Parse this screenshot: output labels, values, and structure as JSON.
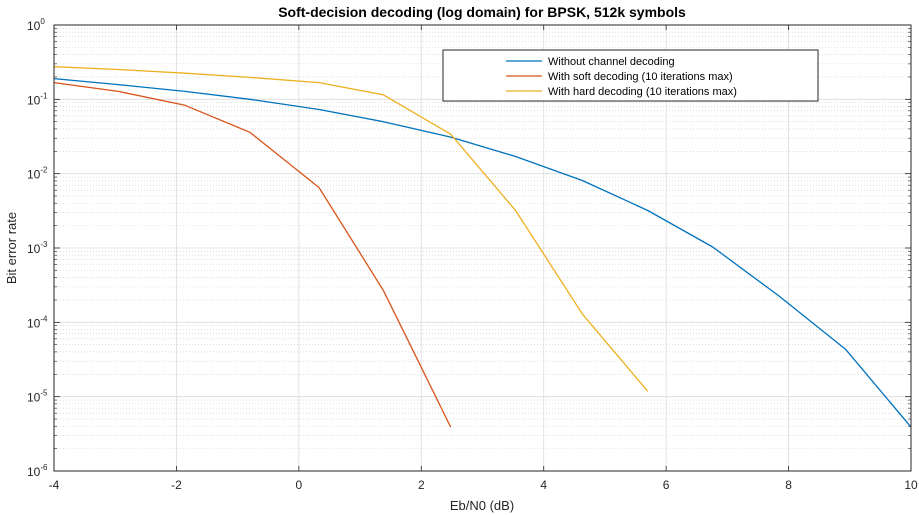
{
  "chart_data": {
    "type": "line",
    "title": "Soft-decision decoding (log domain) for BPSK, 512k symbols",
    "xlabel": "Eb/N0 (dB)",
    "ylabel": "Bit error rate",
    "xlim": [
      -4,
      10
    ],
    "ylim": [
      1e-06,
      1
    ],
    "yscale": "log",
    "grid": true,
    "minor_grid": true,
    "legend_position": "top-right",
    "x_ticks": [
      {
        "value": -4,
        "label": "-4"
      },
      {
        "value": -2,
        "label": "-2"
      },
      {
        "value": 0,
        "label": "0"
      },
      {
        "value": 2,
        "label": "2"
      },
      {
        "value": 4,
        "label": "4"
      },
      {
        "value": 6,
        "label": "6"
      },
      {
        "value": 8,
        "label": "8"
      },
      {
        "value": 10,
        "label": "10"
      }
    ],
    "y_ticks": [
      {
        "value": 1,
        "exponent": "0"
      },
      {
        "value": 0.1,
        "exponent": "-1"
      },
      {
        "value": 0.01,
        "exponent": "-2"
      },
      {
        "value": 0.001,
        "exponent": "-3"
      },
      {
        "value": 0.0001,
        "exponent": "-4"
      },
      {
        "value": 1e-05,
        "exponent": "-5"
      },
      {
        "value": 1e-06,
        "exponent": "-6"
      }
    ],
    "y_tick_base": "10",
    "series": [
      {
        "name": "Without channel decoding",
        "color": "#0072bd",
        "points": [
          [
            -4,
            0.19
          ],
          [
            -2.95,
            0.158
          ],
          [
            -1.86,
            0.128
          ],
          [
            -0.8,
            0.1
          ],
          [
            0.33,
            0.073
          ],
          [
            1.38,
            0.05
          ],
          [
            2.48,
            0.031
          ],
          [
            3.54,
            0.017
          ],
          [
            4.63,
            0.0081
          ],
          [
            5.7,
            0.0032
          ],
          [
            6.76,
            0.00103
          ],
          [
            7.83,
            0.00023
          ],
          [
            8.93,
            4.35e-05
          ],
          [
            10,
            3.9e-06
          ]
        ]
      },
      {
        "name": "With soft decoding (10 iterations max)",
        "color": "#d95319",
        "points": [
          [
            -4,
            0.168
          ],
          [
            -2.95,
            0.128
          ],
          [
            -1.86,
            0.083
          ],
          [
            -0.8,
            0.036
          ],
          [
            0.33,
            0.0065
          ],
          [
            1.38,
            0.00027
          ],
          [
            2.48,
            3.9e-06
          ]
        ]
      },
      {
        "name": "With hard decoding (10 iterations max)",
        "color": "#edb120",
        "points": [
          [
            -4,
            0.275
          ],
          [
            -2.95,
            0.252
          ],
          [
            -1.86,
            0.225
          ],
          [
            -0.8,
            0.197
          ],
          [
            0.33,
            0.168
          ],
          [
            1.38,
            0.115
          ],
          [
            2.48,
            0.034
          ],
          [
            3.54,
            0.0032
          ],
          [
            4.63,
            0.00013
          ],
          [
            5.7,
            1.18e-05
          ]
        ]
      }
    ]
  }
}
